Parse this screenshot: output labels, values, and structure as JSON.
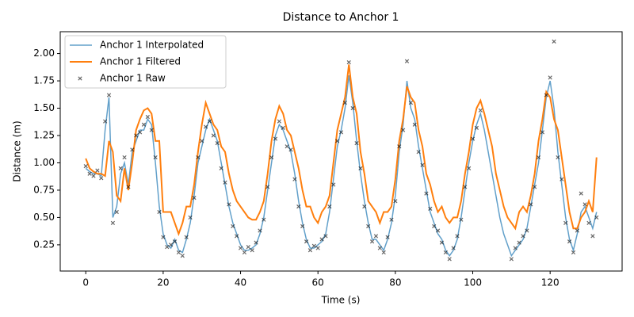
{
  "chart_data": {
    "type": "line",
    "title": "Distance to Anchor 1",
    "xlabel": "Time (s)",
    "ylabel": "Distance (m)",
    "x": [
      0,
      1,
      2,
      3,
      4,
      5,
      6,
      7,
      8,
      9,
      10,
      11,
      12,
      13,
      14,
      15,
      16,
      17,
      18,
      19,
      20,
      21,
      22,
      23,
      24,
      25,
      26,
      27,
      28,
      29,
      30,
      31,
      32,
      33,
      34,
      35,
      36,
      37,
      38,
      39,
      40,
      41,
      42,
      43,
      44,
      45,
      46,
      47,
      48,
      49,
      50,
      51,
      52,
      53,
      54,
      55,
      56,
      57,
      58,
      59,
      60,
      61,
      62,
      63,
      64,
      65,
      66,
      67,
      68,
      69,
      70,
      71,
      72,
      73,
      74,
      75,
      76,
      77,
      78,
      79,
      80,
      81,
      82,
      83,
      84,
      85,
      86,
      87,
      88,
      89,
      90,
      91,
      92,
      93,
      94,
      95,
      96,
      97,
      98,
      99,
      100,
      101,
      102,
      103,
      104,
      105,
      106,
      107,
      108,
      109,
      110,
      111,
      112,
      113,
      114,
      115,
      116,
      117,
      118,
      119,
      120,
      121,
      122,
      123,
      124,
      125,
      126,
      127,
      128,
      129,
      130,
      131,
      132
    ],
    "series": [
      {
        "name": "Anchor 1 Interpolated",
        "kind": "line",
        "color": "#1f77b4",
        "values": [
          0.95,
          0.92,
          0.9,
          0.9,
          0.88,
          1.3,
          1.6,
          0.5,
          0.6,
          0.9,
          1.0,
          0.8,
          1.1,
          1.2,
          1.3,
          1.3,
          1.4,
          1.35,
          1.0,
          0.6,
          0.35,
          0.25,
          0.22,
          0.3,
          0.2,
          0.18,
          0.3,
          0.45,
          0.7,
          1.0,
          1.15,
          1.3,
          1.4,
          1.3,
          1.2,
          1.0,
          0.8,
          0.6,
          0.45,
          0.35,
          0.25,
          0.2,
          0.2,
          0.22,
          0.25,
          0.35,
          0.5,
          0.75,
          1.0,
          1.25,
          1.35,
          1.3,
          1.2,
          1.1,
          0.9,
          0.65,
          0.45,
          0.3,
          0.22,
          0.22,
          0.25,
          0.28,
          0.35,
          0.55,
          0.85,
          1.15,
          1.3,
          1.5,
          1.8,
          1.55,
          1.2,
          0.9,
          0.65,
          0.45,
          0.3,
          0.3,
          0.25,
          0.2,
          0.3,
          0.45,
          0.7,
          1.1,
          1.35,
          1.75,
          1.5,
          1.4,
          1.15,
          0.95,
          0.75,
          0.55,
          0.45,
          0.35,
          0.3,
          0.2,
          0.15,
          0.2,
          0.3,
          0.5,
          0.75,
          1.0,
          1.2,
          1.35,
          1.45,
          1.3,
          1.1,
          0.9,
          0.7,
          0.5,
          0.35,
          0.25,
          0.15,
          0.2,
          0.25,
          0.3,
          0.4,
          0.6,
          0.8,
          1.0,
          1.3,
          1.6,
          1.75,
          1.5,
          1.1,
          0.8,
          0.5,
          0.3,
          0.2,
          0.35,
          0.55,
          0.6,
          0.5,
          0.4,
          0.55
        ]
      },
      {
        "name": "Anchor 1 Filtered",
        "kind": "line",
        "color": "#ff7f0e",
        "values": [
          1.04,
          0.95,
          0.92,
          0.9,
          0.9,
          0.88,
          1.2,
          1.1,
          0.7,
          0.65,
          0.95,
          0.75,
          1.0,
          1.3,
          1.4,
          1.48,
          1.5,
          1.45,
          1.2,
          1.2,
          0.55,
          0.55,
          0.55,
          0.45,
          0.35,
          0.45,
          0.6,
          0.6,
          0.8,
          1.1,
          1.35,
          1.55,
          1.45,
          1.35,
          1.3,
          1.15,
          1.1,
          0.9,
          0.75,
          0.65,
          0.6,
          0.55,
          0.5,
          0.48,
          0.48,
          0.55,
          0.65,
          0.9,
          1.2,
          1.4,
          1.52,
          1.45,
          1.3,
          1.25,
          1.1,
          0.95,
          0.75,
          0.6,
          0.6,
          0.5,
          0.45,
          0.55,
          0.6,
          0.7,
          1.0,
          1.3,
          1.45,
          1.6,
          1.9,
          1.6,
          1.45,
          1.1,
          0.9,
          0.65,
          0.6,
          0.55,
          0.45,
          0.55,
          0.55,
          0.6,
          0.85,
          1.2,
          1.4,
          1.7,
          1.6,
          1.55,
          1.3,
          1.15,
          0.9,
          0.8,
          0.65,
          0.55,
          0.6,
          0.5,
          0.45,
          0.5,
          0.5,
          0.65,
          0.9,
          1.1,
          1.35,
          1.5,
          1.57,
          1.45,
          1.3,
          1.15,
          0.9,
          0.75,
          0.6,
          0.5,
          0.45,
          0.4,
          0.55,
          0.6,
          0.55,
          0.7,
          0.9,
          1.2,
          1.4,
          1.65,
          1.6,
          1.4,
          1.3,
          1.05,
          0.8,
          0.55,
          0.4,
          0.4,
          0.5,
          0.55,
          0.65,
          0.55,
          1.05
        ]
      },
      {
        "name": "Anchor 1 Raw",
        "kind": "scatter",
        "color": "#000000",
        "values": [
          0.97,
          0.9,
          0.88,
          0.93,
          0.86,
          1.38,
          1.62,
          0.45,
          0.55,
          0.95,
          1.05,
          0.78,
          1.12,
          1.25,
          1.28,
          1.35,
          1.42,
          1.3,
          1.05,
          0.55,
          0.32,
          0.23,
          0.25,
          0.28,
          0.18,
          0.15,
          0.32,
          0.5,
          0.68,
          1.05,
          1.2,
          1.33,
          1.38,
          1.25,
          1.18,
          0.95,
          0.82,
          0.62,
          0.42,
          0.33,
          0.22,
          0.18,
          0.23,
          0.2,
          0.27,
          0.38,
          0.48,
          0.78,
          1.05,
          1.22,
          1.38,
          1.32,
          1.15,
          1.12,
          0.85,
          0.6,
          0.42,
          0.28,
          0.2,
          0.24,
          0.22,
          0.3,
          0.33,
          0.6,
          0.8,
          1.2,
          1.28,
          1.55,
          1.92,
          1.5,
          1.18,
          0.95,
          0.6,
          0.42,
          0.28,
          0.33,
          0.22,
          0.18,
          0.32,
          0.48,
          0.65,
          1.15,
          1.3,
          1.93,
          1.55,
          1.35,
          1.1,
          0.98,
          0.72,
          0.58,
          0.42,
          0.38,
          0.27,
          0.18,
          0.12,
          0.22,
          0.33,
          0.48,
          0.78,
          0.95,
          1.22,
          1.32,
          1.48,
          null,
          null,
          null,
          null,
          null,
          null,
          null,
          0.12,
          0.22,
          0.27,
          0.33,
          0.38,
          0.62,
          0.78,
          1.05,
          1.28,
          1.62,
          1.78,
          2.11,
          1.05,
          0.85,
          0.45,
          0.28,
          0.18,
          0.38,
          0.72,
          0.62,
          0.45,
          0.33,
          0.5
        ]
      }
    ],
    "xlim": [
      -6.6,
      138.6
    ],
    "xticks": [
      0,
      20,
      40,
      60,
      80,
      100,
      120
    ],
    "ylim": [
      0.01,
      2.2
    ],
    "yticks": [
      0.25,
      {
        "value": 0.5,
        "label": "0.50"
      },
      0.75,
      {
        "value": 1.0,
        "label": "1.00"
      },
      1.25,
      {
        "value": 1.5,
        "label": "1.50"
      },
      1.75,
      {
        "value": 2.0,
        "label": "2.00"
      }
    ],
    "legend": "upper left"
  }
}
